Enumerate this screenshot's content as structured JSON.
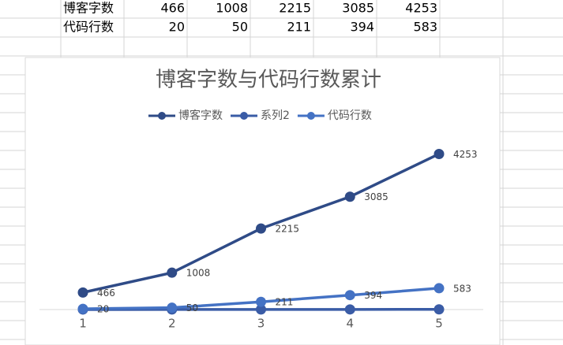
{
  "table": {
    "rows": [
      [
        "博客字数",
        466,
        1008,
        2215,
        3085,
        4253
      ],
      [
        "代码行数",
        20,
        50,
        211,
        394,
        583
      ]
    ]
  },
  "chart_data": {
    "type": "line",
    "title": "博客字数与代码行数累计",
    "categories": [
      "1",
      "2",
      "3",
      "4",
      "5"
    ],
    "series": [
      {
        "name": "博客字数",
        "color": "#2f4b87",
        "values": [
          466,
          1008,
          2215,
          3085,
          4253
        ],
        "data_labels": true
      },
      {
        "name": "系列2",
        "color": "#3a5ca6",
        "values": [
          1,
          2,
          3,
          4,
          5
        ],
        "data_labels": false
      },
      {
        "name": "代码行数",
        "color": "#4472c4",
        "values": [
          20,
          50,
          211,
          394,
          583
        ],
        "data_labels": true
      }
    ],
    "ylim": [
      0,
      4500
    ],
    "grid": false,
    "legend": "top"
  }
}
